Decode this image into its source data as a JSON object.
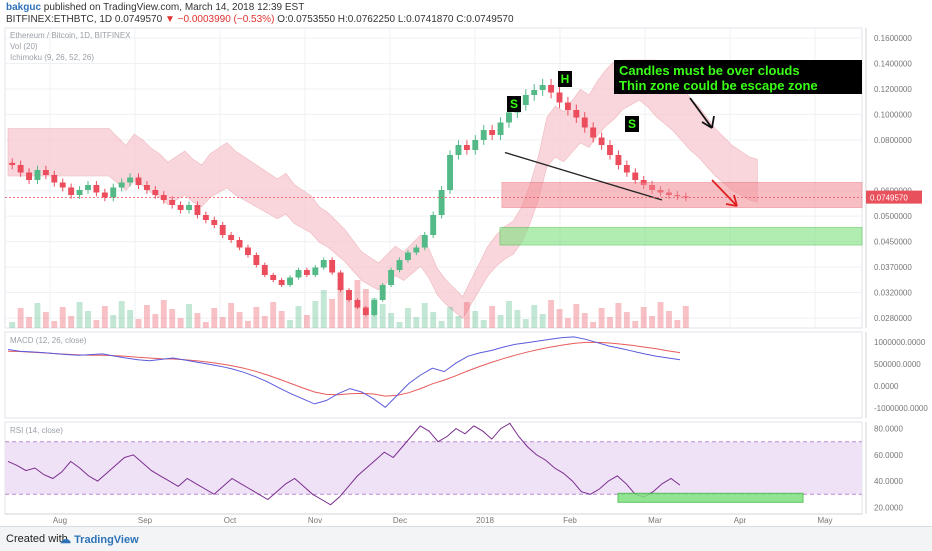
{
  "header": {
    "author": "bakguc",
    "published_text": "published on TradingView.com, March 14, 2018 12:39 EST",
    "symbol_line": "BITFINEX:ETHBTC, 1D",
    "last": "0.0749570",
    "change": "−0.0003990 (−0.53%)",
    "ohlc": "O:0.0753550 H:0.0762250 L:0.0741870 C:0.0749570"
  },
  "footer": {
    "created_with": "Created with",
    "brand": "TradingView"
  },
  "colors": {
    "bull": "#53b987",
    "bear": "#eb4d5c",
    "cloud_bull": "#c8e6c9",
    "cloud_bear": "#f8c9cf",
    "annotation_bg": "#000000",
    "annotation_text": "#39ff14",
    "macd": "#5b5bdc",
    "signal": "#e85b5b",
    "rsi": "#7b2d8e",
    "rsi_band": "#efe2f7"
  },
  "chart_data": [
    {
      "panel": "price",
      "type": "line",
      "legend": [
        "Ethereum / Bitcoin, 1D, BITFINEX",
        "Vol (20)",
        "Ichimoku (9, 26, 52, 26)"
      ],
      "y_ticks": [
        "0.1600000",
        "0.1400000",
        "0.1200000",
        "0.1000000",
        "0.0800000",
        "0.0749570",
        "0.0600000",
        "0.0500000",
        "0.0450000",
        "0.0370000",
        "0.0320000",
        "0.0280000"
      ],
      "last_price_label": "0.0749570",
      "annotations": {
        "note": [
          "Candles must be over clouds",
          "Thin zone could be escape zone"
        ],
        "shoulder_left": "S",
        "head": "H",
        "shoulder_right": "S"
      },
      "close": [
        0.088,
        0.085,
        0.082,
        0.086,
        0.084,
        0.081,
        0.079,
        0.076,
        0.078,
        0.08,
        0.077,
        0.075,
        0.079,
        0.081,
        0.083,
        0.08,
        0.078,
        0.076,
        0.074,
        0.072,
        0.07,
        0.072,
        0.068,
        0.066,
        0.064,
        0.06,
        0.058,
        0.055,
        0.052,
        0.048,
        0.044,
        0.042,
        0.04,
        0.043,
        0.046,
        0.044,
        0.047,
        0.05,
        0.045,
        0.038,
        0.034,
        0.031,
        0.028,
        0.034,
        0.04,
        0.046,
        0.05,
        0.053,
        0.055,
        0.06,
        0.068,
        0.078,
        0.092,
        0.096,
        0.094,
        0.098,
        0.102,
        0.1,
        0.105,
        0.109,
        0.112,
        0.116,
        0.118,
        0.12,
        0.117,
        0.113,
        0.11,
        0.107,
        0.103,
        0.099,
        0.096,
        0.092,
        0.088,
        0.085,
        0.082,
        0.08,
        0.078,
        0.077,
        0.076,
        0.0755,
        0.075
      ]
    },
    {
      "panel": "macd",
      "type": "line",
      "legend": "MACD (12, 26, close)",
      "y_ticks": [
        "1000000.0000",
        "500000.0000",
        "0.0000",
        "-1000000.0000"
      ],
      "macd": [
        0.75,
        0.7,
        0.68,
        0.66,
        0.63,
        0.6,
        0.58,
        0.6,
        0.62,
        0.56,
        0.5,
        0.45,
        0.42,
        0.46,
        0.5,
        0.44,
        0.38,
        0.32,
        0.26,
        0.18,
        0.08,
        -0.05,
        -0.2,
        -0.38,
        -0.55,
        -0.7,
        -0.85,
        -0.75,
        -0.55,
        -0.4,
        -0.5,
        -0.7,
        -0.95,
        -0.6,
        -0.25,
        0.0,
        0.2,
        0.1,
        0.35,
        0.55,
        0.65,
        0.72,
        0.82,
        0.9,
        0.95,
        1.0,
        1.05,
        1.1,
        1.12,
        1.05,
        0.95,
        0.85,
        0.78,
        0.7,
        0.62,
        0.55,
        0.5,
        0.45
      ],
      "signal": [
        0.7,
        0.69,
        0.67,
        0.65,
        0.63,
        0.61,
        0.59,
        0.58,
        0.58,
        0.57,
        0.55,
        0.52,
        0.5,
        0.48,
        0.47,
        0.45,
        0.42,
        0.38,
        0.33,
        0.27,
        0.2,
        0.11,
        0.0,
        -0.12,
        -0.25,
        -0.38,
        -0.5,
        -0.57,
        -0.58,
        -0.55,
        -0.54,
        -0.56,
        -0.62,
        -0.6,
        -0.52,
        -0.4,
        -0.26,
        -0.15,
        -0.02,
        0.12,
        0.25,
        0.37,
        0.48,
        0.58,
        0.67,
        0.75,
        0.82,
        0.88,
        0.93,
        0.96,
        0.96,
        0.94,
        0.91,
        0.87,
        0.82,
        0.77,
        0.71,
        0.66
      ]
    },
    {
      "panel": "rsi",
      "type": "line",
      "legend": "RSI (14, close)",
      "y_ticks": [
        "80.0000",
        "60.0000",
        "40.0000",
        "20.0000"
      ],
      "ylim": [
        15,
        85
      ],
      "bands": [
        70,
        30
      ],
      "values": [
        55,
        52,
        48,
        50,
        45,
        42,
        47,
        55,
        50,
        44,
        40,
        46,
        52,
        58,
        60,
        54,
        48,
        44,
        40,
        36,
        42,
        38,
        34,
        30,
        36,
        42,
        38,
        34,
        30,
        26,
        32,
        38,
        42,
        36,
        30,
        26,
        22,
        28,
        36,
        44,
        50,
        56,
        62,
        58,
        66,
        74,
        82,
        78,
        70,
        74,
        80,
        76,
        82,
        78,
        72,
        80,
        84,
        74,
        66,
        60,
        56,
        50,
        46,
        40,
        32,
        30,
        34,
        40,
        44,
        38,
        30,
        28,
        32,
        38,
        42,
        37
      ]
    }
  ],
  "time_axis": {
    "labels": [
      "Aug",
      "Sep",
      "Oct",
      "Nov",
      "Dec",
      "2018",
      "Feb",
      "Mar",
      "Apr",
      "May"
    ]
  }
}
